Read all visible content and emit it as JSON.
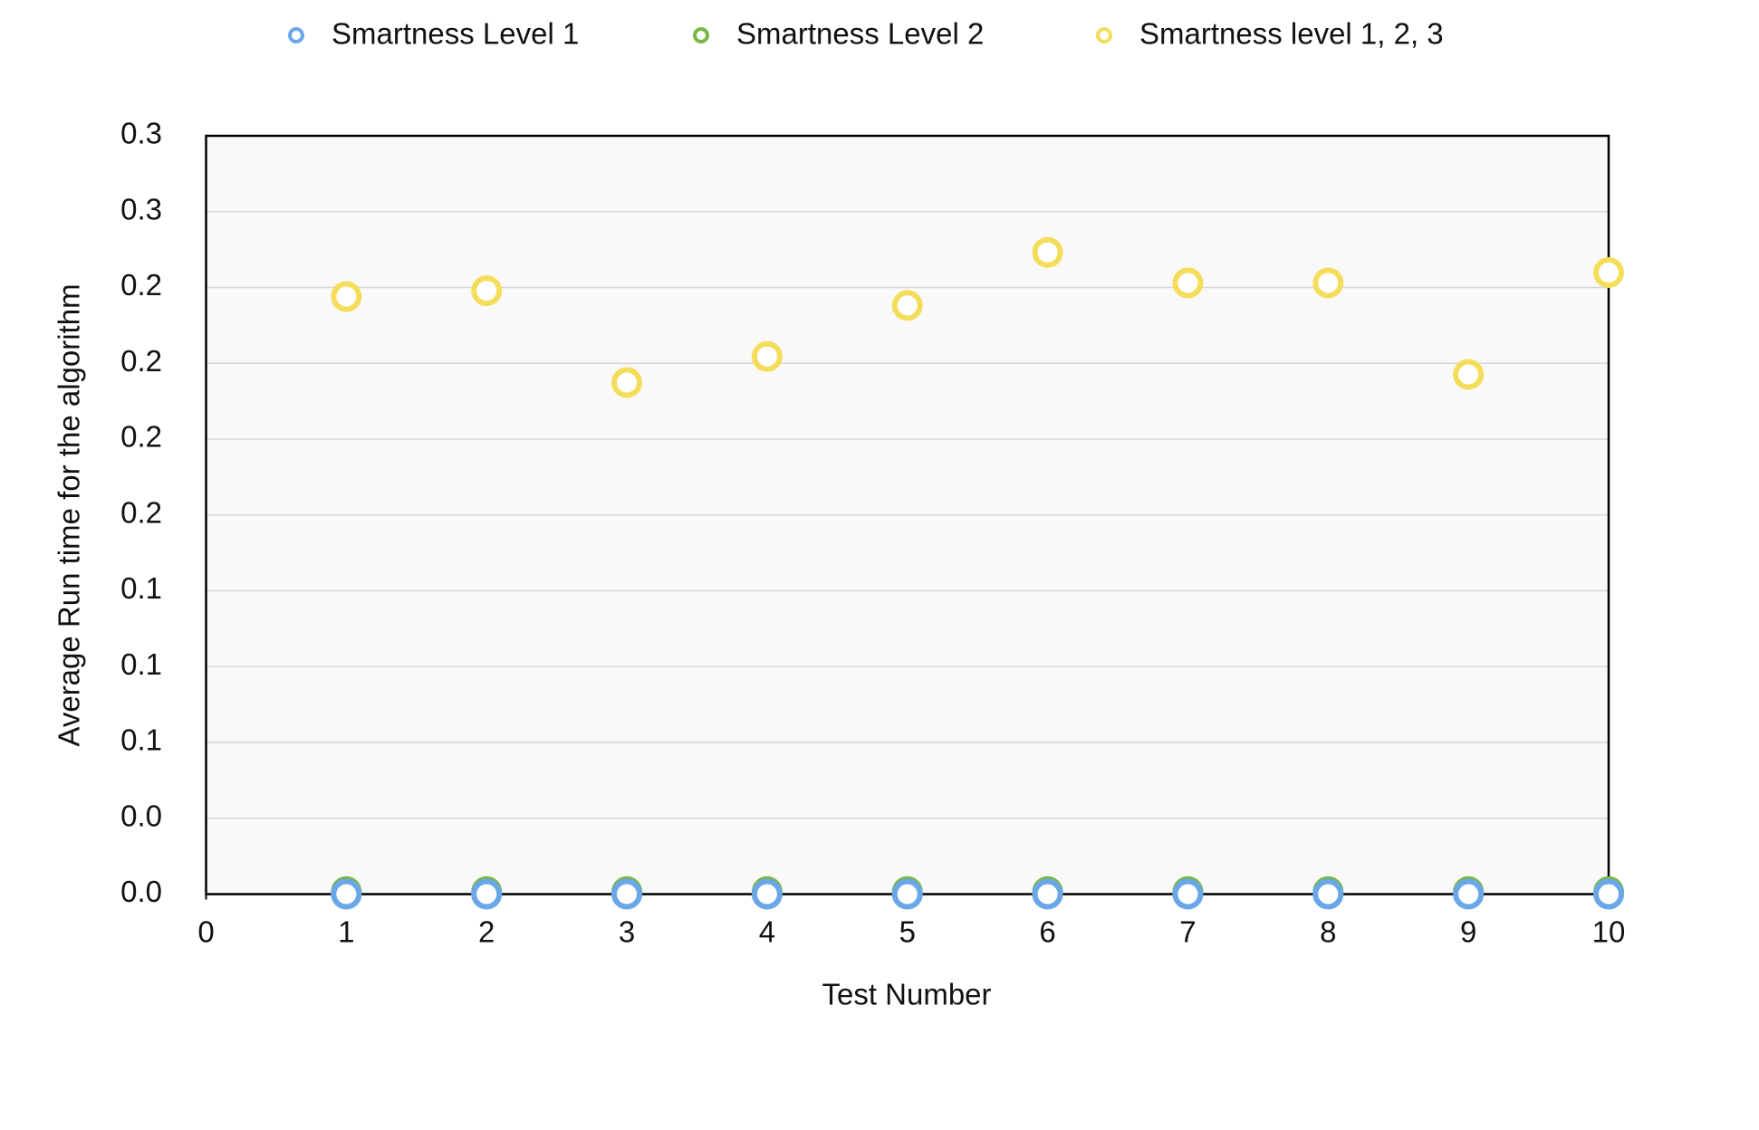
{
  "chart_data": {
    "type": "scatter",
    "x_label": "Test Number",
    "y_label": "Average Run time for the algorithm",
    "x": [
      1,
      2,
      3,
      4,
      5,
      6,
      7,
      8,
      9,
      10
    ],
    "series": [
      {
        "name": "Smartness Level 1",
        "color": "#6aa7e8",
        "values": [
          0,
          0,
          0,
          0,
          0,
          0,
          0,
          0,
          0,
          0
        ]
      },
      {
        "name": "Smartness Level 2",
        "color": "#7ab648",
        "values": [
          0.001,
          0.001,
          0.001,
          0.001,
          0.001,
          0.001,
          0.001,
          0.001,
          0.001,
          0.001
        ]
      },
      {
        "name": "Smartness level 1, 2, 3",
        "color": "#f5dd5c",
        "values": [
          0.2364,
          0.2387,
          0.2024,
          0.2127,
          0.2329,
          0.2539,
          0.2418,
          0.2418,
          0.2056,
          0.2459
        ]
      }
    ],
    "xlim": [
      0,
      10
    ],
    "xticks": [
      0,
      1,
      2,
      3,
      4,
      5,
      6,
      7,
      8,
      9,
      10
    ],
    "ylim": [
      0,
      0.3
    ],
    "yticks": [
      {
        "value": 0,
        "label": "0.0"
      },
      {
        "value": 0.03,
        "label": "0.0"
      },
      {
        "value": 0.06,
        "label": "0.1"
      },
      {
        "value": 0.09,
        "label": "0.1"
      },
      {
        "value": 0.12,
        "label": "0.1"
      },
      {
        "value": 0.15,
        "label": "0.2"
      },
      {
        "value": 0.18,
        "label": "0.2"
      },
      {
        "value": 0.21,
        "label": "0.2"
      },
      {
        "value": 0.24,
        "label": "0.2"
      },
      {
        "value": 0.27,
        "label": "0.3"
      },
      0.3
    ],
    "grid": true,
    "legend": "top"
  }
}
